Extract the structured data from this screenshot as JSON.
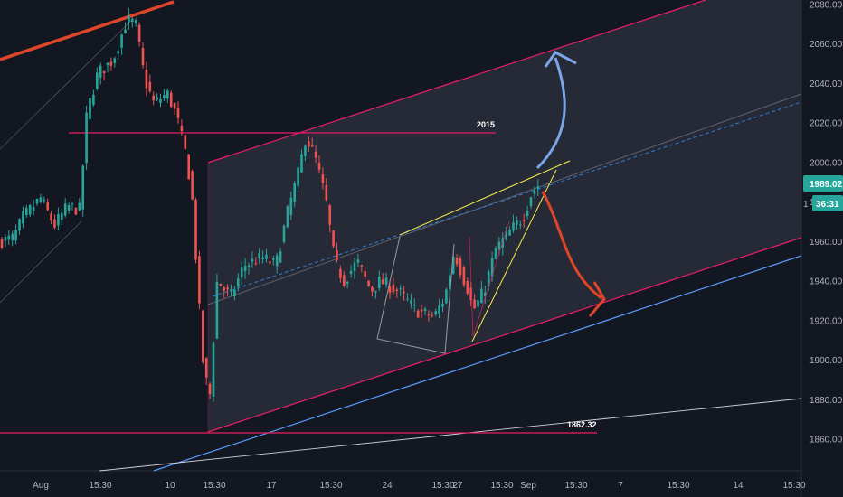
{
  "chart_data": {
    "type": "candlestick",
    "title": "",
    "ylim": [
      1843,
      2083
    ],
    "y_ticks": [
      1860,
      1880,
      1900,
      1920,
      1940,
      1960,
      1980,
      2000,
      2020,
      2040,
      2060,
      2080
    ],
    "x_tick_labels": [
      "Aug",
      "15:30",
      "10",
      "15:30",
      "17",
      "15:30",
      "24",
      "15:30",
      "27",
      "15:30",
      "Sep",
      "15:30",
      "7",
      "15:30",
      "14",
      "15:30"
    ],
    "last_price": "1989.02",
    "countdown": "36:31",
    "annotations": [
      {
        "label": "2015",
        "value": 2015
      },
      {
        "label": "1862.32",
        "value": 1862.32
      }
    ],
    "colors": {
      "background": "#131722",
      "up": "#26a69a",
      "down": "#ef5350",
      "channel": "#e91e63",
      "channel_fill": "#2a2e39",
      "trend_blue": "#5b9cf6",
      "wedge": "#f4ef50",
      "arrow_up": "#7aa6e8",
      "arrow_down": "#e0452a",
      "old_trend": "#e0452a",
      "badge": "#26a69a"
    }
  }
}
